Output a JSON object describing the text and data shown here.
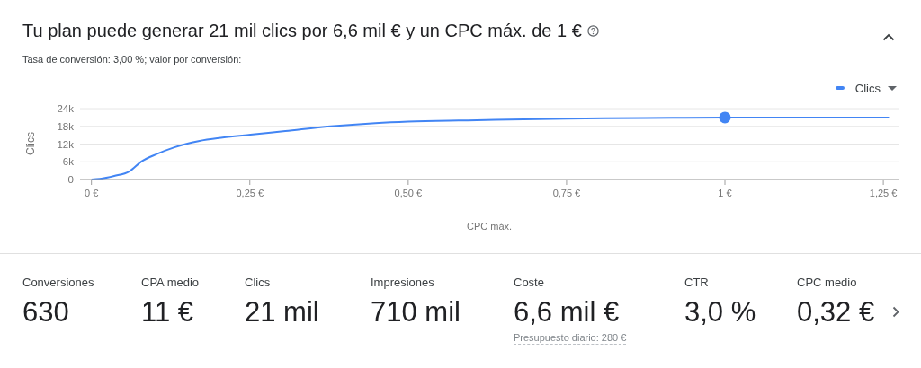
{
  "chart_data": [
    {
      "type": "line",
      "title": "Tu plan puede generar 21 mil clics por 6,6 mil € y un CPC máx. de 1 €",
      "subtitle": "Tasa de conversión: 3,00 %; valor por conversión:",
      "xlabel": "CPC máx.",
      "ylabel": "Clics",
      "series": [
        {
          "name": "Clics",
          "type": "line",
          "color": "#4285f4",
          "x": [
            0,
            0.013,
            0.036,
            0.06,
            0.079,
            0.103,
            0.131,
            0.169,
            0.207,
            0.251,
            0.306,
            0.377,
            0.448,
            0.5,
            0.594,
            0.75,
            0.875,
            1.0,
            1.259
          ],
          "values": [
            0,
            200,
            1200,
            2800,
            6100,
            8600,
            10900,
            13000,
            14200,
            15200,
            16400,
            18000,
            19100,
            19600,
            20000,
            20600,
            20800,
            21000,
            21000
          ]
        },
        {
          "type": "scatter",
          "color": "#4285f4",
          "marker": "circle",
          "x": [
            1.0
          ],
          "values": [
            21000
          ]
        }
      ],
      "xlim": [
        -0.018,
        1.274
      ],
      "xticks": [
        {
          "value": 0,
          "label": "0 €"
        },
        {
          "value": 0.25,
          "label": "0,25 €"
        },
        {
          "value": 0.5,
          "label": "0,50 €"
        },
        {
          "value": 0.75,
          "label": "0,75 €"
        },
        {
          "value": 1,
          "label": "1 €"
        },
        {
          "value": 1.25,
          "label": "1,25 €"
        }
      ],
      "ylim": [
        0,
        24000
      ],
      "yticks": [
        0,
        {
          "value": 6000,
          "label": "6k"
        },
        {
          "value": 12000,
          "label": "12k"
        },
        {
          "value": 18000,
          "label": "18k"
        },
        {
          "value": 24000,
          "label": "24k"
        }
      ],
      "grid": "y",
      "legend": "top right"
    },
    {
      "type": "other",
      "annotations": [
        "Conversiones",
        "630",
        "CPA medio",
        "11 €",
        "Clics",
        "21 mil",
        "Impresiones",
        "710 mil",
        "Coste",
        "6,6 mil €",
        "Presupuesto diario: 280 €",
        "CTR",
        "3,0 %",
        "CPC medio",
        "0,32 €"
      ]
    }
  ]
}
